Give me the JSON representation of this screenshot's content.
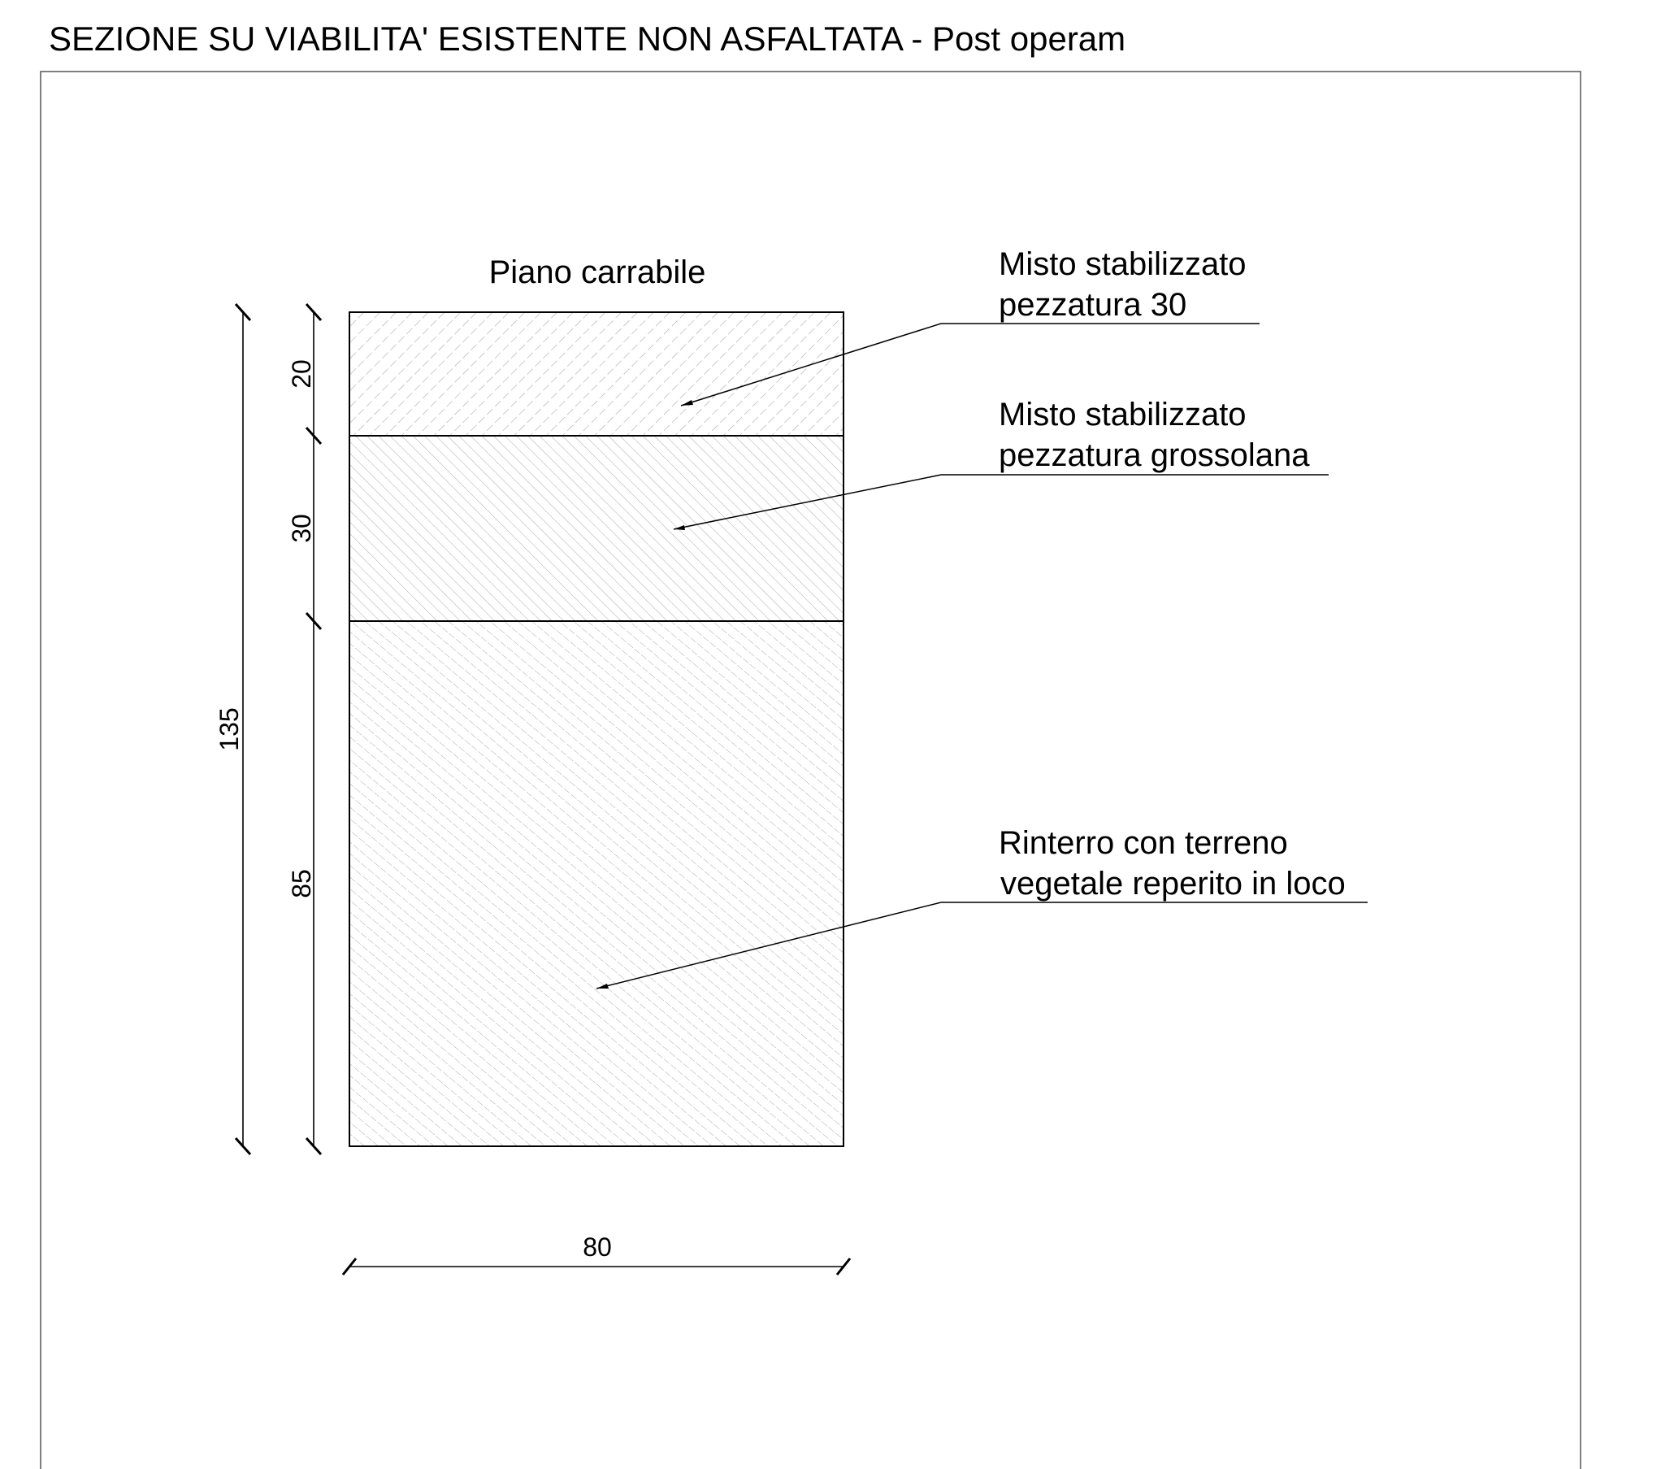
{
  "title": "SEZIONE SU VIABILITA' ESISTENTE NON ASFALTATA - Post operam",
  "top_label": "Piano carrabile",
  "layers": [
    {
      "thickness_label": "20",
      "callout": [
        "Misto stabilizzato",
        "pezzatura 30"
      ]
    },
    {
      "thickness_label": "30",
      "callout": [
        "Misto stabilizzato",
        "pezzatura grossolana"
      ]
    },
    {
      "thickness_label": "85",
      "callout": [
        "Rinterro con terreno",
        "vegetale reperito in loco"
      ]
    }
  ],
  "total_height_label": "135",
  "width_label": "80",
  "colors": {
    "line": "#000000",
    "hatch": "#9a9a9a",
    "frame": "#555555"
  }
}
